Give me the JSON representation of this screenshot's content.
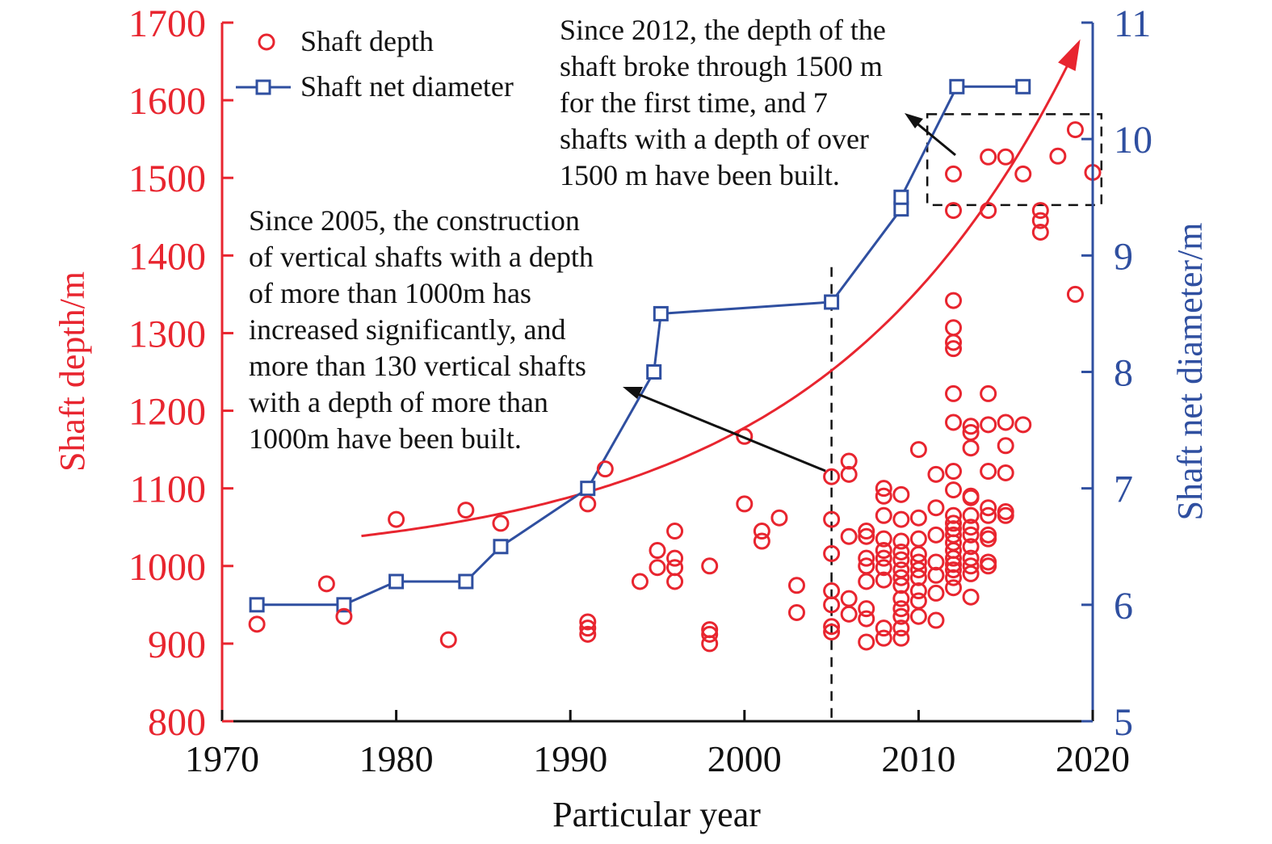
{
  "colors": {
    "depth": "#e8252f",
    "diameter": "#2f4fa0",
    "axis_text": "#111111",
    "annotation": "#111111"
  },
  "chart_data": {
    "type": "scatter",
    "xlabel": "Particular year",
    "ylabel_left": "Shaft depth/m",
    "ylabel_right": "Shaft net diameter/m",
    "xlim": [
      1970,
      2020
    ],
    "ylim_left": [
      800,
      1700
    ],
    "ylim_right": [
      5,
      11
    ],
    "x_ticks": [
      "1970",
      "1980",
      "1990",
      "2000",
      "2010",
      "2020"
    ],
    "y_left_ticks": [
      "800",
      "900",
      "1000",
      "1100",
      "1200",
      "1300",
      "1400",
      "1500",
      "1600",
      "1700"
    ],
    "y_right_ticks": [
      "5",
      "6",
      "7",
      "8",
      "9",
      "10",
      "11"
    ],
    "grid": false,
    "legend_position": "top-left",
    "legend": [
      "Shaft depth",
      "Shaft net diameter"
    ],
    "series": [
      {
        "name": "Shaft depth",
        "marker": "open-circle",
        "axis": "left",
        "points": [
          [
            1972,
            925
          ],
          [
            1976,
            977
          ],
          [
            1977,
            935
          ],
          [
            1980,
            1060
          ],
          [
            1983,
            905
          ],
          [
            1984,
            1072
          ],
          [
            1986,
            1055
          ],
          [
            1991,
            1080
          ],
          [
            1991,
            928
          ],
          [
            1991,
            920
          ],
          [
            1991,
            912
          ],
          [
            1992,
            1125
          ],
          [
            1994,
            980
          ],
          [
            1995,
            1020
          ],
          [
            1995,
            998
          ],
          [
            1996,
            1045
          ],
          [
            1996,
            1010
          ],
          [
            1996,
            998
          ],
          [
            1996,
            980
          ],
          [
            1998,
            1000
          ],
          [
            1998,
            918
          ],
          [
            1998,
            912
          ],
          [
            1998,
            900
          ],
          [
            2000,
            1167
          ],
          [
            2000,
            1080
          ],
          [
            2001,
            1045
          ],
          [
            2001,
            1032
          ],
          [
            2002,
            1062
          ],
          [
            2003,
            975
          ],
          [
            2003,
            940
          ],
          [
            2005,
            1115
          ],
          [
            2005,
            1060
          ],
          [
            2005,
            1016
          ],
          [
            2005,
            968
          ],
          [
            2005,
            950
          ],
          [
            2005,
            922
          ],
          [
            2005,
            915
          ],
          [
            2006,
            1135
          ],
          [
            2006,
            1118
          ],
          [
            2006,
            1038
          ],
          [
            2006,
            958
          ],
          [
            2006,
            938
          ],
          [
            2007,
            1045
          ],
          [
            2007,
            1038
          ],
          [
            2007,
            1010
          ],
          [
            2007,
            1000
          ],
          [
            2007,
            980
          ],
          [
            2007,
            945
          ],
          [
            2007,
            932
          ],
          [
            2007,
            902
          ],
          [
            2008,
            1100
          ],
          [
            2008,
            1090
          ],
          [
            2008,
            1065
          ],
          [
            2008,
            1035
          ],
          [
            2008,
            1020
          ],
          [
            2008,
            1010
          ],
          [
            2008,
            998
          ],
          [
            2008,
            982
          ],
          [
            2008,
            920
          ],
          [
            2008,
            907
          ],
          [
            2009,
            1092
          ],
          [
            2009,
            1060
          ],
          [
            2009,
            1032
          ],
          [
            2009,
            1018
          ],
          [
            2009,
            1008
          ],
          [
            2009,
            995
          ],
          [
            2009,
            985
          ],
          [
            2009,
            975
          ],
          [
            2009,
            958
          ],
          [
            2009,
            945
          ],
          [
            2009,
            935
          ],
          [
            2009,
            920
          ],
          [
            2009,
            907
          ],
          [
            2010,
            1150
          ],
          [
            2010,
            1062
          ],
          [
            2010,
            1035
          ],
          [
            2010,
            1015
          ],
          [
            2010,
            1005
          ],
          [
            2010,
            995
          ],
          [
            2010,
            985
          ],
          [
            2010,
            968
          ],
          [
            2010,
            955
          ],
          [
            2010,
            935
          ],
          [
            2011,
            1118
          ],
          [
            2011,
            1075
          ],
          [
            2011,
            1040
          ],
          [
            2011,
            1005
          ],
          [
            2011,
            988
          ],
          [
            2011,
            965
          ],
          [
            2011,
            930
          ],
          [
            2012,
            1505
          ],
          [
            2012,
            1458
          ],
          [
            2012,
            1342
          ],
          [
            2012,
            1307
          ],
          [
            2012,
            1288
          ],
          [
            2012,
            1280
          ],
          [
            2012,
            1222
          ],
          [
            2012,
            1185
          ],
          [
            2012,
            1122
          ],
          [
            2012,
            1098
          ],
          [
            2012,
            1065
          ],
          [
            2012,
            1055
          ],
          [
            2012,
            1048
          ],
          [
            2012,
            1040
          ],
          [
            2012,
            1030
          ],
          [
            2012,
            1020
          ],
          [
            2012,
            1010
          ],
          [
            2012,
            1002
          ],
          [
            2012,
            995
          ],
          [
            2012,
            985
          ],
          [
            2012,
            972
          ],
          [
            2013,
            1180
          ],
          [
            2013,
            1172
          ],
          [
            2013,
            1152
          ],
          [
            2013,
            1090
          ],
          [
            2013,
            1088
          ],
          [
            2013,
            1065
          ],
          [
            2013,
            1050
          ],
          [
            2013,
            1040
          ],
          [
            2013,
            1025
          ],
          [
            2013,
            1010
          ],
          [
            2013,
            1000
          ],
          [
            2013,
            990
          ],
          [
            2013,
            960
          ],
          [
            2014,
            1527
          ],
          [
            2014,
            1458
          ],
          [
            2014,
            1222
          ],
          [
            2014,
            1182
          ],
          [
            2014,
            1122
          ],
          [
            2014,
            1075
          ],
          [
            2014,
            1065
          ],
          [
            2014,
            1040
          ],
          [
            2014,
            1035
          ],
          [
            2014,
            1005
          ],
          [
            2014,
            1000
          ],
          [
            2015,
            1527
          ],
          [
            2015,
            1185
          ],
          [
            2015,
            1155
          ],
          [
            2015,
            1120
          ],
          [
            2015,
            1070
          ],
          [
            2015,
            1065
          ],
          [
            2016,
            1505
          ],
          [
            2016,
            1182
          ],
          [
            2017,
            1458
          ],
          [
            2017,
            1445
          ],
          [
            2017,
            1430
          ],
          [
            2018,
            1528
          ],
          [
            2019,
            1562
          ],
          [
            2019,
            1350
          ],
          [
            2020,
            1507
          ]
        ]
      },
      {
        "name": "Shaft net diameter",
        "marker": "open-square",
        "axis": "right",
        "points": [
          [
            1972,
            6.0
          ],
          [
            1977,
            6.0
          ],
          [
            1980,
            6.2
          ],
          [
            1984,
            6.2
          ],
          [
            1986,
            6.5
          ],
          [
            1991,
            7.0
          ],
          [
            1994.8,
            8.0
          ],
          [
            1995.2,
            8.5
          ],
          [
            2005,
            8.6
          ],
          [
            2009,
            9.4
          ],
          [
            2009,
            9.5
          ],
          [
            2012.2,
            10.45
          ],
          [
            2016,
            10.45
          ]
        ]
      },
      {
        "type": "trend",
        "axis": "left",
        "coeff": {
          "a": 1000,
          "b": 25.5,
          "c": 0.0694
        },
        "x_from": 1978,
        "x_to": 2019
      }
    ],
    "guides": [
      {
        "type": "vline",
        "x": 2005,
        "y_from": 800,
        "y_to": 1385,
        "style": "dashed"
      },
      {
        "type": "box",
        "x_from": 2010.5,
        "x_to": 2020.5,
        "y_from": 1465,
        "y_to": 1582,
        "style": "dashed"
      }
    ],
    "annotations": [
      {
        "lines": [
          "Since 2012, the depth of the",
          "shaft broke through 1500 m",
          "for the first time, and 7",
          "shafts with a depth of over",
          "1500 m have been built."
        ]
      },
      {
        "lines": [
          "Since 2005, the construction",
          "of vertical shafts with a depth",
          "of more than 1000m has",
          "increased significantly, and",
          "more than 130 vertical shafts",
          "with a depth of more than",
          "1000m have been built."
        ]
      }
    ]
  }
}
